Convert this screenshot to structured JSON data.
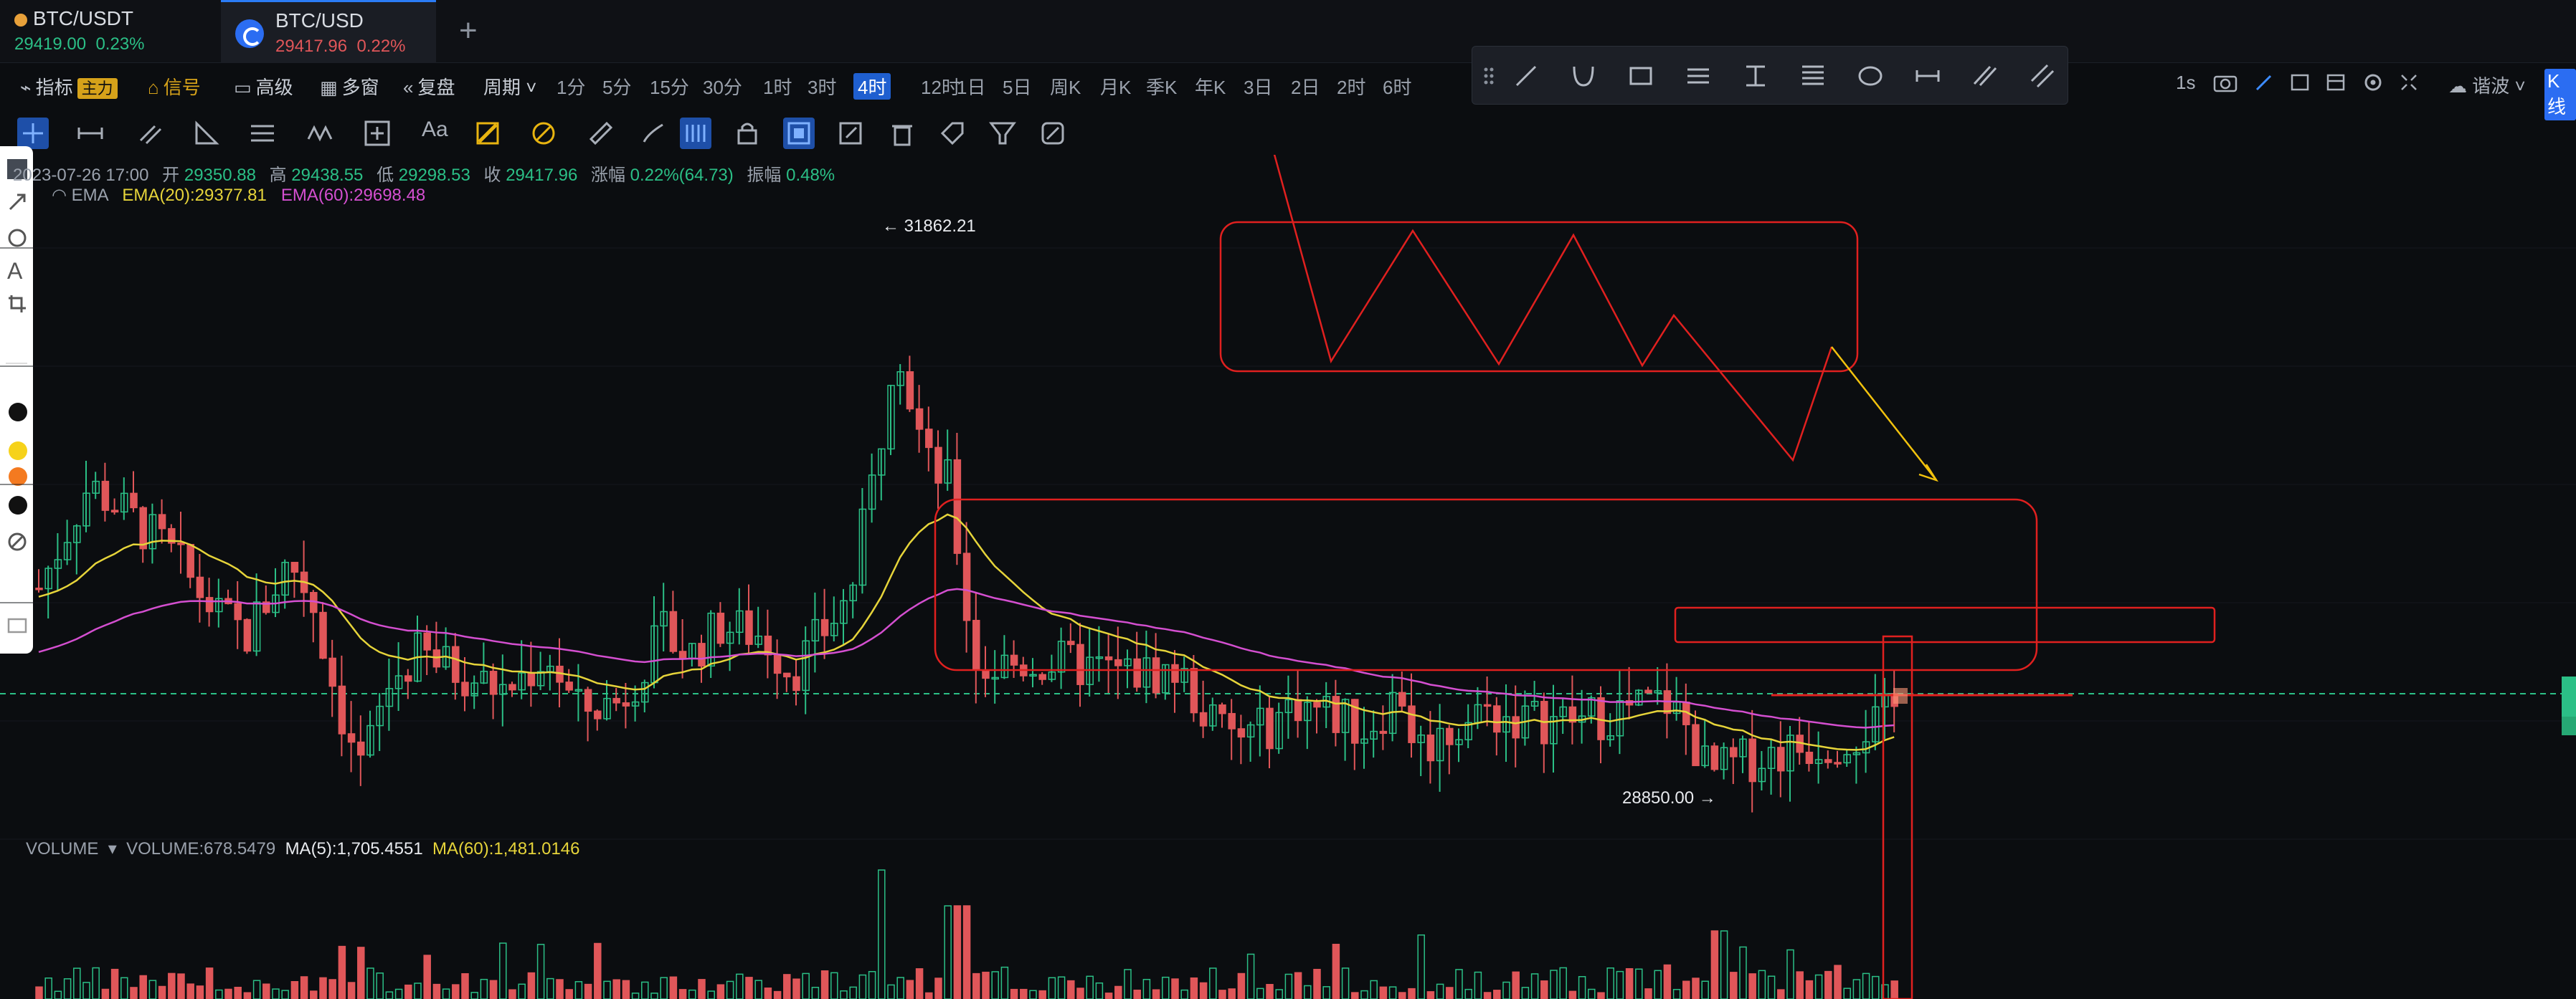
{
  "tabs": [
    {
      "symbol": "BTC/USDT",
      "price": "29419.00",
      "change": "0.23%"
    },
    {
      "symbol": "BTC/USD",
      "price": "29417.96",
      "change": "0.22%"
    }
  ],
  "toolbar": {
    "indicator": "指标",
    "main": "主力",
    "signal": "信号",
    "advanced": "高级",
    "multi_window": "多窗",
    "replay": "复盘",
    "period": "周期",
    "timeframes": [
      "1分",
      "5分",
      "15分",
      "30分",
      "1时",
      "3时",
      "4时",
      "12时",
      "1日",
      "5日",
      "周K",
      "月K",
      "季K",
      "年K",
      "3日",
      "2日",
      "2时",
      "6时"
    ],
    "active_timeframe": "4时",
    "right_interval": "1s",
    "right_theme": "谐波",
    "right_kline": "K线"
  },
  "ohlc": {
    "date": "2023-07-26 17:00",
    "open_label": "开",
    "open": "29350.88",
    "high_label": "高",
    "high": "29438.55",
    "low_label": "低",
    "low": "29298.53",
    "close_label": "收",
    "close": "29417.96",
    "chg_label": "涨幅",
    "chg": "0.22%(64.73)",
    "amp_label": "振幅",
    "amp": "0.48%"
  },
  "ema": {
    "label": "EMA",
    "ema20": "EMA(20):29377.81",
    "ema60": "EMA(60):29698.48"
  },
  "volume": {
    "label": "VOLUME",
    "value": "VOLUME:678.5479",
    "ma5": "MA(5):1,705.4551",
    "ma60": "MA(60):1,481.0146"
  },
  "annotations": {
    "high_price": "← 31862.21",
    "low_price": "28850.00 →"
  },
  "colors": {
    "up": "#2bbf86",
    "down": "#e05659",
    "ema20": "#e6d43a",
    "ema60": "#d44fd0",
    "drawing": "#e0201f",
    "arrow_yellow": "#f2c20d",
    "accent": "#2b7cf6"
  },
  "chart_data": {
    "type": "candlestick",
    "series": [
      {
        "name": "EMA(20)",
        "values": []
      },
      {
        "name": "EMA(60)",
        "values": []
      }
    ],
    "high_marker": 31862.21,
    "low_marker": 28850.0,
    "last_close": 29417.96
  }
}
